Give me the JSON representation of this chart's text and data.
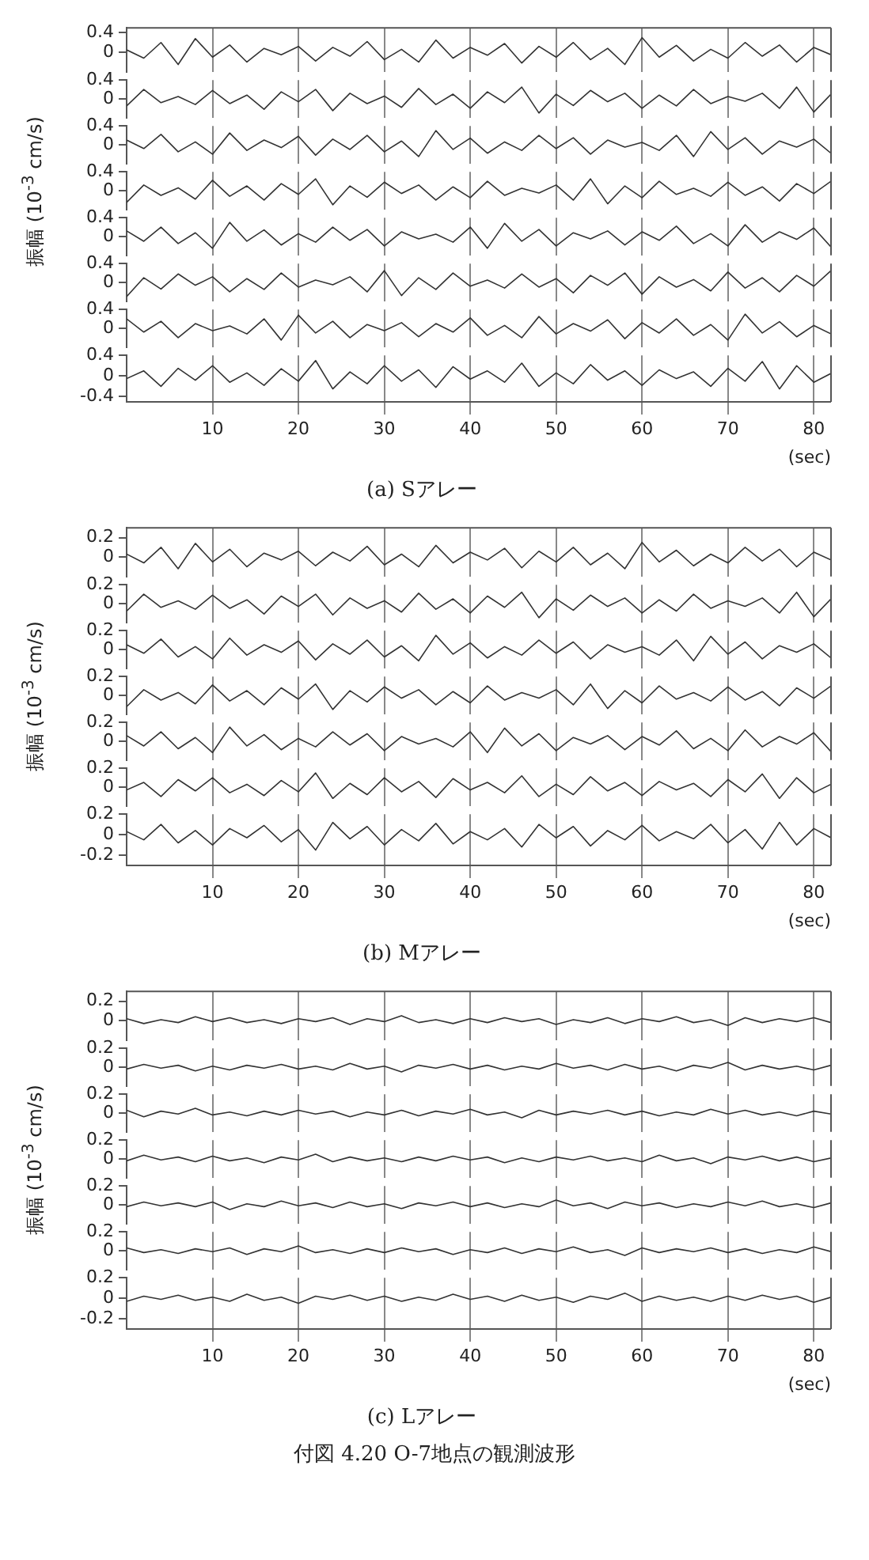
{
  "chart_data": [
    {
      "type": "line",
      "tick_labels": "y",
      "grid": "x",
      "xlim": [
        0,
        82
      ],
      "xticks": [
        10,
        20,
        30,
        40,
        50,
        60,
        70,
        80
      ],
      "ylim": [
        -0.4,
        0.5
      ],
      "yticks": [
        0.4,
        0
      ],
      "x": [
        0,
        2,
        4,
        6,
        8,
        10,
        12,
        14,
        16,
        18,
        20,
        22,
        24,
        26,
        28,
        30,
        32,
        34,
        36,
        38,
        40,
        42,
        44,
        46,
        48,
        50,
        52,
        54,
        56,
        58,
        60,
        62,
        64,
        66,
        68,
        70,
        72,
        74,
        76,
        78,
        80,
        82
      ],
      "color": "#333333",
      "values": [
        0.05,
        -0.12,
        0.2,
        -0.25,
        0.28,
        -0.1,
        0.15,
        -0.2,
        0.08,
        -0.05,
        0.12,
        -0.18,
        0.1,
        -0.08,
        0.22,
        -0.15,
        0.06,
        -0.2,
        0.25,
        -0.12,
        0.1,
        -0.06,
        0.18,
        -0.22,
        0.12,
        -0.1,
        0.2,
        -0.15,
        0.08,
        -0.25,
        0.3,
        -0.1,
        0.14,
        -0.18,
        0.06,
        -0.12,
        0.2,
        -0.08,
        0.15,
        -0.2,
        0.1,
        -0.05
      ]
    },
    {
      "type": "line",
      "tick_labels": "y",
      "grid": "x",
      "xlim": [
        0,
        82
      ],
      "xticks": [
        10,
        20,
        30,
        40,
        50,
        60,
        70,
        80
      ],
      "ylim": [
        -0.4,
        0.4
      ],
      "yticks": [
        0.4,
        0
      ],
      "x": [
        0,
        2,
        4,
        6,
        8,
        10,
        12,
        14,
        16,
        18,
        20,
        22,
        24,
        26,
        28,
        30,
        32,
        34,
        36,
        38,
        40,
        42,
        44,
        46,
        48,
        50,
        52,
        54,
        56,
        58,
        60,
        62,
        64,
        66,
        68,
        70,
        72,
        74,
        76,
        78,
        80,
        82
      ],
      "color": "#333333",
      "values": [
        -0.15,
        0.2,
        -0.08,
        0.05,
        -0.12,
        0.18,
        -0.1,
        0.08,
        -0.22,
        0.15,
        -0.06,
        0.2,
        -0.25,
        0.12,
        -0.1,
        0.06,
        -0.18,
        0.22,
        -0.12,
        0.1,
        -0.2,
        0.15,
        -0.08,
        0.25,
        -0.3,
        0.1,
        -0.14,
        0.18,
        -0.06,
        0.12,
        -0.2,
        0.08,
        -0.15,
        0.2,
        -0.1,
        0.05,
        -0.05,
        0.12,
        -0.2,
        0.25,
        -0.28,
        0.1
      ]
    },
    {
      "type": "line",
      "tick_labels": "y",
      "grid": "x",
      "xlim": [
        0,
        82
      ],
      "xticks": [
        10,
        20,
        30,
        40,
        50,
        60,
        70,
        80
      ],
      "ylim": [
        -0.4,
        0.4
      ],
      "yticks": [
        0.4,
        0
      ],
      "x": [
        0,
        2,
        4,
        6,
        8,
        10,
        12,
        14,
        16,
        18,
        20,
        22,
        24,
        26,
        28,
        30,
        32,
        34,
        36,
        38,
        40,
        42,
        44,
        46,
        48,
        50,
        52,
        54,
        56,
        58,
        60,
        62,
        64,
        66,
        68,
        70,
        72,
        74,
        76,
        78,
        80,
        82
      ],
      "color": "#333333",
      "values": [
        0.1,
        -0.08,
        0.22,
        -0.15,
        0.06,
        -0.2,
        0.25,
        -0.12,
        0.1,
        -0.06,
        0.18,
        -0.22,
        0.12,
        -0.1,
        0.2,
        -0.15,
        0.08,
        -0.25,
        0.3,
        -0.1,
        0.14,
        -0.18,
        0.06,
        -0.12,
        0.2,
        -0.08,
        0.15,
        -0.2,
        0.1,
        -0.05,
        0.05,
        -0.12,
        0.2,
        -0.25,
        0.28,
        -0.1,
        0.15,
        -0.2,
        0.08,
        -0.05,
        0.12,
        -0.18
      ]
    },
    {
      "type": "line",
      "tick_labels": "y",
      "grid": "x",
      "ylabel": "振幅 (10$^{-3}$ cm/s)",
      "xlim": [
        0,
        82
      ],
      "xticks": [
        10,
        20,
        30,
        40,
        50,
        60,
        70,
        80
      ],
      "ylim": [
        -0.4,
        0.4
      ],
      "yticks": [
        0.4,
        0
      ],
      "x": [
        0,
        2,
        4,
        6,
        8,
        10,
        12,
        14,
        16,
        18,
        20,
        22,
        24,
        26,
        28,
        30,
        32,
        34,
        36,
        38,
        40,
        42,
        44,
        46,
        48,
        50,
        52,
        54,
        56,
        58,
        60,
        62,
        64,
        66,
        68,
        70,
        72,
        74,
        76,
        78,
        80,
        82
      ],
      "color": "#333333",
      "values": [
        -0.25,
        0.12,
        -0.1,
        0.06,
        -0.18,
        0.22,
        -0.12,
        0.1,
        -0.2,
        0.15,
        -0.08,
        0.25,
        -0.3,
        0.1,
        -0.14,
        0.18,
        -0.06,
        0.12,
        -0.2,
        0.08,
        -0.15,
        0.2,
        -0.1,
        0.05,
        -0.05,
        0.12,
        -0.2,
        0.25,
        -0.28,
        0.1,
        -0.15,
        0.2,
        -0.08,
        0.05,
        -0.12,
        0.18,
        -0.1,
        0.08,
        -0.22,
        0.15,
        -0.06,
        0.2
      ]
    },
    {
      "type": "line",
      "tick_labels": "y",
      "grid": "x",
      "xlim": [
        0,
        82
      ],
      "xticks": [
        10,
        20,
        30,
        40,
        50,
        60,
        70,
        80
      ],
      "ylim": [
        -0.4,
        0.4
      ],
      "yticks": [
        0.4,
        0
      ],
      "x": [
        0,
        2,
        4,
        6,
        8,
        10,
        12,
        14,
        16,
        18,
        20,
        22,
        24,
        26,
        28,
        30,
        32,
        34,
        36,
        38,
        40,
        42,
        44,
        46,
        48,
        50,
        52,
        54,
        56,
        58,
        60,
        62,
        64,
        66,
        68,
        70,
        72,
        74,
        76,
        78,
        80,
        82
      ],
      "color": "#333333",
      "values": [
        0.12,
        -0.1,
        0.2,
        -0.15,
        0.08,
        -0.25,
        0.3,
        -0.1,
        0.14,
        -0.18,
        0.06,
        -0.12,
        0.2,
        -0.08,
        0.15,
        -0.2,
        0.1,
        -0.05,
        0.05,
        -0.12,
        0.2,
        -0.25,
        0.28,
        -0.1,
        0.15,
        -0.2,
        0.08,
        -0.05,
        0.12,
        -0.18,
        0.1,
        -0.08,
        0.22,
        -0.15,
        0.06,
        -0.2,
        0.25,
        -0.12,
        0.1,
        -0.06,
        0.18,
        -0.22
      ]
    },
    {
      "type": "line",
      "tick_labels": "y",
      "grid": "x",
      "xlim": [
        0,
        82
      ],
      "xticks": [
        10,
        20,
        30,
        40,
        50,
        60,
        70,
        80
      ],
      "ylim": [
        -0.4,
        0.4
      ],
      "yticks": [
        0.4,
        0
      ],
      "x": [
        0,
        2,
        4,
        6,
        8,
        10,
        12,
        14,
        16,
        18,
        20,
        22,
        24,
        26,
        28,
        30,
        32,
        34,
        36,
        38,
        40,
        42,
        44,
        46,
        48,
        50,
        52,
        54,
        56,
        58,
        60,
        62,
        64,
        66,
        68,
        70,
        72,
        74,
        76,
        78,
        80,
        82
      ],
      "color": "#333333",
      "values": [
        -0.3,
        0.1,
        -0.14,
        0.18,
        -0.06,
        0.12,
        -0.2,
        0.08,
        -0.15,
        0.2,
        -0.1,
        0.05,
        -0.05,
        0.12,
        -0.2,
        0.25,
        -0.28,
        0.1,
        -0.15,
        0.2,
        -0.08,
        0.05,
        -0.12,
        0.18,
        -0.1,
        0.08,
        -0.22,
        0.15,
        -0.06,
        0.2,
        -0.25,
        0.12,
        -0.1,
        0.06,
        -0.18,
        0.22,
        -0.12,
        0.1,
        -0.2,
        0.15,
        -0.08,
        0.25
      ]
    },
    {
      "type": "line",
      "tick_labels": "y",
      "grid": "x",
      "xlim": [
        0,
        82
      ],
      "xticks": [
        10,
        20,
        30,
        40,
        50,
        60,
        70,
        80
      ],
      "ylim": [
        -0.4,
        0.4
      ],
      "yticks": [
        0.4,
        0
      ],
      "x": [
        0,
        2,
        4,
        6,
        8,
        10,
        12,
        14,
        16,
        18,
        20,
        22,
        24,
        26,
        28,
        30,
        32,
        34,
        36,
        38,
        40,
        42,
        44,
        46,
        48,
        50,
        52,
        54,
        56,
        58,
        60,
        62,
        64,
        66,
        68,
        70,
        72,
        74,
        76,
        78,
        80,
        82
      ],
      "color": "#333333",
      "values": [
        0.2,
        -0.08,
        0.15,
        -0.2,
        0.1,
        -0.05,
        0.05,
        -0.12,
        0.2,
        -0.25,
        0.28,
        -0.1,
        0.15,
        -0.2,
        0.08,
        -0.05,
        0.12,
        -0.18,
        0.1,
        -0.08,
        0.22,
        -0.15,
        0.06,
        -0.2,
        0.25,
        -0.12,
        0.1,
        -0.06,
        0.18,
        -0.22,
        0.12,
        -0.1,
        0.2,
        -0.15,
        0.08,
        -0.25,
        0.3,
        -0.1,
        0.14,
        -0.18,
        0.06,
        -0.12
      ]
    },
    {
      "type": "line",
      "title": "(a) Sアレー",
      "xlabel": "(sec)",
      "grid": "x",
      "xlim": [
        0,
        82
      ],
      "xticks": [
        10,
        20,
        30,
        40,
        50,
        60,
        70,
        80
      ],
      "ylim": [
        -0.5,
        0.4
      ],
      "yticks": [
        0.4,
        0,
        -0.4
      ],
      "x": [
        0,
        2,
        4,
        6,
        8,
        10,
        12,
        14,
        16,
        18,
        20,
        22,
        24,
        26,
        28,
        30,
        32,
        34,
        36,
        38,
        40,
        42,
        44,
        46,
        48,
        50,
        52,
        54,
        56,
        58,
        60,
        62,
        64,
        66,
        68,
        70,
        72,
        74,
        76,
        78,
        80,
        82
      ],
      "color": "#333333",
      "values": [
        -0.05,
        0.1,
        -0.2,
        0.15,
        -0.08,
        0.2,
        -0.12,
        0.06,
        -0.18,
        0.14,
        -0.1,
        0.3,
        -0.25,
        0.08,
        -0.15,
        0.2,
        -0.1,
        0.12,
        -0.22,
        0.18,
        -0.06,
        0.1,
        -0.12,
        0.25,
        -0.2,
        0.06,
        -0.15,
        0.22,
        -0.08,
        0.1,
        -0.18,
        0.12,
        -0.05,
        0.08,
        -0.2,
        0.15,
        -0.1,
        0.28,
        -0.25,
        0.2,
        -0.12,
        0.05
      ]
    },
    {
      "type": "line",
      "tick_labels": "y",
      "grid": "x",
      "xlim": [
        0,
        82
      ],
      "xticks": [
        10,
        20,
        30,
        40,
        50,
        60,
        70,
        80
      ],
      "ylim": [
        -0.2,
        0.3
      ],
      "yticks": [
        0.2,
        0
      ],
      "x": [
        0,
        2,
        4,
        6,
        8,
        10,
        12,
        14,
        16,
        18,
        20,
        22,
        24,
        26,
        28,
        30,
        32,
        34,
        36,
        38,
        40,
        42,
        44,
        46,
        48,
        50,
        52,
        54,
        56,
        58,
        60,
        62,
        64,
        66,
        68,
        70,
        72,
        74,
        76,
        78,
        80,
        82
      ],
      "color": "#333333",
      "values": [
        0.03,
        -0.06,
        0.1,
        -0.12,
        0.14,
        -0.05,
        0.08,
        -0.1,
        0.04,
        -0.03,
        0.06,
        -0.09,
        0.05,
        -0.04,
        0.11,
        -0.08,
        0.03,
        -0.1,
        0.12,
        -0.06,
        0.05,
        -0.03,
        0.09,
        -0.11,
        0.06,
        -0.05,
        0.1,
        -0.08,
        0.04,
        -0.12,
        0.15,
        -0.05,
        0.07,
        -0.09,
        0.03,
        -0.06,
        0.1,
        -0.04,
        0.08,
        -0.1,
        0.05,
        -0.03
      ]
    },
    {
      "type": "line",
      "tick_labels": "y",
      "grid": "x",
      "xlim": [
        0,
        82
      ],
      "xticks": [
        10,
        20,
        30,
        40,
        50,
        60,
        70,
        80
      ],
      "ylim": [
        -0.2,
        0.2
      ],
      "yticks": [
        0.2,
        0
      ],
      "x": [
        0,
        2,
        4,
        6,
        8,
        10,
        12,
        14,
        16,
        18,
        20,
        22,
        24,
        26,
        28,
        30,
        32,
        34,
        36,
        38,
        40,
        42,
        44,
        46,
        48,
        50,
        52,
        54,
        56,
        58,
        60,
        62,
        64,
        66,
        68,
        70,
        72,
        74,
        76,
        78,
        80,
        82
      ],
      "color": "#333333",
      "values": [
        -0.08,
        0.1,
        -0.04,
        0.03,
        -0.06,
        0.09,
        -0.05,
        0.04,
        -0.11,
        0.08,
        -0.03,
        0.1,
        -0.12,
        0.06,
        -0.05,
        0.03,
        -0.09,
        0.11,
        -0.06,
        0.05,
        -0.1,
        0.08,
        -0.04,
        0.12,
        -0.15,
        0.05,
        -0.07,
        0.09,
        -0.03,
        0.06,
        -0.1,
        0.04,
        -0.08,
        0.1,
        -0.05,
        0.03,
        -0.03,
        0.06,
        -0.1,
        0.12,
        -0.14,
        0.05
      ]
    },
    {
      "type": "line",
      "tick_labels": "y",
      "grid": "x",
      "xlim": [
        0,
        82
      ],
      "xticks": [
        10,
        20,
        30,
        40,
        50,
        60,
        70,
        80
      ],
      "ylim": [
        -0.2,
        0.2
      ],
      "yticks": [
        0.2,
        0
      ],
      "x": [
        0,
        2,
        4,
        6,
        8,
        10,
        12,
        14,
        16,
        18,
        20,
        22,
        24,
        26,
        28,
        30,
        32,
        34,
        36,
        38,
        40,
        42,
        44,
        46,
        48,
        50,
        52,
        54,
        56,
        58,
        60,
        62,
        64,
        66,
        68,
        70,
        72,
        74,
        76,
        78,
        80,
        82
      ],
      "color": "#333333",
      "values": [
        0.05,
        -0.04,
        0.11,
        -0.08,
        0.03,
        -0.1,
        0.12,
        -0.06,
        0.05,
        -0.03,
        0.09,
        -0.11,
        0.06,
        -0.05,
        0.1,
        -0.08,
        0.04,
        -0.12,
        0.15,
        -0.05,
        0.07,
        -0.09,
        0.03,
        -0.06,
        0.1,
        -0.04,
        0.08,
        -0.1,
        0.05,
        -0.03,
        0.03,
        -0.06,
        0.1,
        -0.12,
        0.14,
        -0.05,
        0.08,
        -0.1,
        0.04,
        -0.03,
        0.06,
        -0.09
      ]
    },
    {
      "type": "line",
      "tick_labels": "y",
      "grid": "x",
      "ylabel": "振幅 (10$^{-3}$ cm/s)",
      "xlim": [
        0,
        82
      ],
      "xticks": [
        10,
        20,
        30,
        40,
        50,
        60,
        70,
        80
      ],
      "ylim": [
        -0.2,
        0.2
      ],
      "yticks": [
        0.2,
        0
      ],
      "x": [
        0,
        2,
        4,
        6,
        8,
        10,
        12,
        14,
        16,
        18,
        20,
        22,
        24,
        26,
        28,
        30,
        32,
        34,
        36,
        38,
        40,
        42,
        44,
        46,
        48,
        50,
        52,
        54,
        56,
        58,
        60,
        62,
        64,
        66,
        68,
        70,
        72,
        74,
        76,
        78,
        80,
        82
      ],
      "color": "#333333",
      "values": [
        -0.12,
        0.06,
        -0.05,
        0.03,
        -0.09,
        0.11,
        -0.06,
        0.05,
        -0.1,
        0.08,
        -0.04,
        0.12,
        -0.15,
        0.05,
        -0.07,
        0.09,
        -0.03,
        0.06,
        -0.1,
        0.04,
        -0.08,
        0.1,
        -0.05,
        0.03,
        -0.03,
        0.06,
        -0.1,
        0.12,
        -0.14,
        0.05,
        -0.08,
        0.1,
        -0.04,
        0.03,
        -0.06,
        0.09,
        -0.05,
        0.04,
        -0.11,
        0.08,
        -0.03,
        0.1
      ]
    },
    {
      "type": "line",
      "tick_labels": "y",
      "grid": "x",
      "xlim": [
        0,
        82
      ],
      "xticks": [
        10,
        20,
        30,
        40,
        50,
        60,
        70,
        80
      ],
      "ylim": [
        -0.2,
        0.2
      ],
      "yticks": [
        0.2,
        0
      ],
      "x": [
        0,
        2,
        4,
        6,
        8,
        10,
        12,
        14,
        16,
        18,
        20,
        22,
        24,
        26,
        28,
        30,
        32,
        34,
        36,
        38,
        40,
        42,
        44,
        46,
        48,
        50,
        52,
        54,
        56,
        58,
        60,
        62,
        64,
        66,
        68,
        70,
        72,
        74,
        76,
        78,
        80,
        82
      ],
      "color": "#333333",
      "values": [
        0.06,
        -0.05,
        0.1,
        -0.08,
        0.04,
        -0.12,
        0.15,
        -0.05,
        0.07,
        -0.09,
        0.03,
        -0.06,
        0.1,
        -0.04,
        0.08,
        -0.1,
        0.05,
        -0.03,
        0.03,
        -0.06,
        0.1,
        -0.12,
        0.14,
        -0.05,
        0.08,
        -0.1,
        0.04,
        -0.03,
        0.06,
        -0.09,
        0.05,
        -0.04,
        0.11,
        -0.08,
        0.03,
        -0.1,
        0.12,
        -0.06,
        0.05,
        -0.03,
        0.09,
        -0.11
      ]
    },
    {
      "type": "line",
      "tick_labels": "y",
      "grid": "x",
      "xlim": [
        0,
        82
      ],
      "xticks": [
        10,
        20,
        30,
        40,
        50,
        60,
        70,
        80
      ],
      "ylim": [
        -0.2,
        0.2
      ],
      "yticks": [
        0.2,
        0
      ],
      "x": [
        0,
        2,
        4,
        6,
        8,
        10,
        12,
        14,
        16,
        18,
        20,
        22,
        24,
        26,
        28,
        30,
        32,
        34,
        36,
        38,
        40,
        42,
        44,
        46,
        48,
        50,
        52,
        54,
        56,
        58,
        60,
        62,
        64,
        66,
        68,
        70,
        72,
        74,
        76,
        78,
        80,
        82
      ],
      "color": "#333333",
      "values": [
        -0.03,
        0.05,
        -0.1,
        0.08,
        -0.04,
        0.1,
        -0.06,
        0.03,
        -0.09,
        0.07,
        -0.05,
        0.15,
        -0.12,
        0.04,
        -0.08,
        0.1,
        -0.05,
        0.06,
        -0.11,
        0.09,
        -0.03,
        0.05,
        -0.06,
        0.12,
        -0.1,
        0.03,
        -0.08,
        0.11,
        -0.04,
        0.05,
        -0.09,
        0.06,
        -0.03,
        0.04,
        -0.1,
        0.08,
        -0.05,
        0.14,
        -0.12,
        0.1,
        -0.06,
        0.03
      ]
    },
    {
      "type": "line",
      "title": "(b) Mアレー",
      "xlabel": "(sec)",
      "grid": "x",
      "xlim": [
        0,
        82
      ],
      "xticks": [
        10,
        20,
        30,
        40,
        50,
        60,
        70,
        80
      ],
      "ylim": [
        -0.3,
        0.2
      ],
      "yticks": [
        0.2,
        0,
        -0.2
      ],
      "x": [
        0,
        2,
        4,
        6,
        8,
        10,
        12,
        14,
        16,
        18,
        20,
        22,
        24,
        26,
        28,
        30,
        32,
        34,
        36,
        38,
        40,
        42,
        44,
        46,
        48,
        50,
        52,
        54,
        56,
        58,
        60,
        62,
        64,
        66,
        68,
        70,
        72,
        74,
        76,
        78,
        80,
        82
      ],
      "color": "#333333",
      "values": [
        0.03,
        -0.05,
        0.1,
        -0.08,
        0.04,
        -0.1,
        0.06,
        -0.03,
        0.09,
        -0.07,
        0.05,
        -0.15,
        0.12,
        -0.04,
        0.08,
        -0.1,
        0.05,
        -0.06,
        0.11,
        -0.09,
        0.03,
        -0.05,
        0.06,
        -0.12,
        0.1,
        -0.03,
        0.08,
        -0.11,
        0.04,
        -0.05,
        0.09,
        -0.06,
        0.03,
        -0.04,
        0.1,
        -0.08,
        0.05,
        -0.14,
        0.12,
        -0.1,
        0.06,
        -0.03
      ]
    },
    {
      "type": "line",
      "tick_labels": "y",
      "grid": "x",
      "xlim": [
        0,
        82
      ],
      "xticks": [
        10,
        20,
        30,
        40,
        50,
        60,
        70,
        80
      ],
      "ylim": [
        -0.2,
        0.3
      ],
      "yticks": [
        0.2,
        0
      ],
      "x": [
        0,
        2,
        4,
        6,
        8,
        10,
        12,
        14,
        16,
        18,
        20,
        22,
        24,
        26,
        28,
        30,
        32,
        34,
        36,
        38,
        40,
        42,
        44,
        46,
        48,
        50,
        52,
        54,
        56,
        58,
        60,
        62,
        64,
        66,
        68,
        70,
        72,
        74,
        76,
        78,
        80,
        82
      ],
      "color": "#333333",
      "values": [
        0.02,
        -0.03,
        0.01,
        -0.02,
        0.04,
        -0.01,
        0.03,
        -0.02,
        0.01,
        -0.03,
        0.02,
        -0.01,
        0.03,
        -0.04,
        0.02,
        -0.01,
        0.05,
        -0.02,
        0.01,
        -0.03,
        0.02,
        -0.02,
        0.03,
        -0.01,
        0.02,
        -0.04,
        0.01,
        -0.02,
        0.03,
        -0.03,
        0.02,
        -0.01,
        0.04,
        -0.02,
        0.01,
        -0.05,
        0.03,
        -0.02,
        0.02,
        -0.01,
        0.03,
        -0.02
      ]
    },
    {
      "type": "line",
      "tick_labels": "y",
      "grid": "x",
      "xlim": [
        0,
        82
      ],
      "xticks": [
        10,
        20,
        30,
        40,
        50,
        60,
        70,
        80
      ],
      "ylim": [
        -0.2,
        0.2
      ],
      "yticks": [
        0.2,
        0
      ],
      "x": [
        0,
        2,
        4,
        6,
        8,
        10,
        12,
        14,
        16,
        18,
        20,
        22,
        24,
        26,
        28,
        30,
        32,
        34,
        36,
        38,
        40,
        42,
        44,
        46,
        48,
        50,
        52,
        54,
        56,
        58,
        60,
        62,
        64,
        66,
        68,
        70,
        72,
        74,
        76,
        78,
        80,
        82
      ],
      "color": "#333333",
      "values": [
        -0.02,
        0.03,
        -0.01,
        0.02,
        -0.04,
        0.01,
        -0.03,
        0.02,
        -0.01,
        0.03,
        -0.02,
        0.01,
        -0.03,
        0.04,
        -0.02,
        0.01,
        -0.05,
        0.02,
        -0.01,
        0.03,
        -0.02,
        0.02,
        -0.03,
        0.01,
        -0.02,
        0.04,
        -0.01,
        0.02,
        -0.03,
        0.03,
        -0.02,
        0.01,
        -0.04,
        0.02,
        -0.01,
        0.05,
        -0.03,
        0.02,
        -0.02,
        0.01,
        -0.03,
        0.02
      ]
    },
    {
      "type": "line",
      "tick_labels": "y",
      "grid": "x",
      "xlim": [
        0,
        82
      ],
      "xticks": [
        10,
        20,
        30,
        40,
        50,
        60,
        70,
        80
      ],
      "ylim": [
        -0.2,
        0.2
      ],
      "yticks": [
        0.2,
        0
      ],
      "x": [
        0,
        2,
        4,
        6,
        8,
        10,
        12,
        14,
        16,
        18,
        20,
        22,
        24,
        26,
        28,
        30,
        32,
        34,
        36,
        38,
        40,
        42,
        44,
        46,
        48,
        50,
        52,
        54,
        56,
        58,
        60,
        62,
        64,
        66,
        68,
        70,
        72,
        74,
        76,
        78,
        80,
        82
      ],
      "color": "#333333",
      "values": [
        0.03,
        -0.04,
        0.02,
        -0.01,
        0.05,
        -0.02,
        0.01,
        -0.03,
        0.02,
        -0.02,
        0.03,
        -0.01,
        0.02,
        -0.04,
        0.01,
        -0.02,
        0.03,
        -0.03,
        0.02,
        -0.01,
        0.04,
        -0.02,
        0.01,
        -0.05,
        0.03,
        -0.02,
        0.02,
        -0.01,
        0.03,
        -0.02,
        0.02,
        -0.03,
        0.01,
        -0.02,
        0.04,
        -0.01,
        0.03,
        -0.02,
        0.01,
        -0.03,
        0.02,
        -0.01
      ]
    },
    {
      "type": "line",
      "tick_labels": "y",
      "grid": "x",
      "ylabel": "振幅 (10$^{-3}$ cm/s)",
      "xlim": [
        0,
        82
      ],
      "xticks": [
        10,
        20,
        30,
        40,
        50,
        60,
        70,
        80
      ],
      "ylim": [
        -0.2,
        0.2
      ],
      "yticks": [
        0.2,
        0
      ],
      "x": [
        0,
        2,
        4,
        6,
        8,
        10,
        12,
        14,
        16,
        18,
        20,
        22,
        24,
        26,
        28,
        30,
        32,
        34,
        36,
        38,
        40,
        42,
        44,
        46,
        48,
        50,
        52,
        54,
        56,
        58,
        60,
        62,
        64,
        66,
        68,
        70,
        72,
        74,
        76,
        78,
        80,
        82
      ],
      "color": "#333333",
      "values": [
        -0.02,
        0.04,
        -0.01,
        0.02,
        -0.03,
        0.03,
        -0.02,
        0.01,
        -0.04,
        0.02,
        -0.01,
        0.05,
        -0.03,
        0.02,
        -0.02,
        0.01,
        -0.03,
        0.02,
        -0.02,
        0.03,
        -0.01,
        0.02,
        -0.04,
        0.01,
        -0.03,
        0.02,
        -0.01,
        0.03,
        -0.02,
        0.01,
        -0.03,
        0.04,
        -0.02,
        0.01,
        -0.05,
        0.02,
        -0.01,
        0.03,
        -0.02,
        0.02,
        -0.03,
        0.01
      ]
    },
    {
      "type": "line",
      "tick_labels": "y",
      "grid": "x",
      "xlim": [
        0,
        82
      ],
      "xticks": [
        10,
        20,
        30,
        40,
        50,
        60,
        70,
        80
      ],
      "ylim": [
        -0.2,
        0.2
      ],
      "yticks": [
        0.2,
        0
      ],
      "x": [
        0,
        2,
        4,
        6,
        8,
        10,
        12,
        14,
        16,
        18,
        20,
        22,
        24,
        26,
        28,
        30,
        32,
        34,
        36,
        38,
        40,
        42,
        44,
        46,
        48,
        50,
        52,
        54,
        56,
        58,
        60,
        62,
        64,
        66,
        68,
        70,
        72,
        74,
        76,
        78,
        80,
        82
      ],
      "color": "#333333",
      "values": [
        -0.02,
        0.03,
        -0.01,
        0.02,
        -0.02,
        0.03,
        -0.05,
        0.01,
        -0.02,
        0.04,
        -0.01,
        0.02,
        -0.03,
        0.03,
        -0.02,
        0.01,
        -0.04,
        0.02,
        -0.01,
        0.03,
        -0.02,
        0.02,
        -0.03,
        0.01,
        -0.02,
        0.05,
        -0.01,
        0.02,
        -0.04,
        0.03,
        -0.01,
        0.02,
        -0.03,
        0.01,
        -0.02,
        0.03,
        -0.01,
        0.04,
        -0.02,
        0.01,
        -0.03,
        0.02
      ]
    },
    {
      "type": "line",
      "tick_labels": "y",
      "grid": "x",
      "xlim": [
        0,
        82
      ],
      "xticks": [
        10,
        20,
        30,
        40,
        50,
        60,
        70,
        80
      ],
      "ylim": [
        -0.2,
        0.2
      ],
      "yticks": [
        0.2,
        0
      ],
      "x": [
        0,
        2,
        4,
        6,
        8,
        10,
        12,
        14,
        16,
        18,
        20,
        22,
        24,
        26,
        28,
        30,
        32,
        34,
        36,
        38,
        40,
        42,
        44,
        46,
        48,
        50,
        52,
        54,
        56,
        58,
        60,
        62,
        64,
        66,
        68,
        70,
        72,
        74,
        76,
        78,
        80,
        82
      ],
      "color": "#333333",
      "values": [
        0.03,
        -0.02,
        0.01,
        -0.03,
        0.02,
        -0.01,
        0.03,
        -0.04,
        0.02,
        -0.01,
        0.05,
        -0.02,
        0.01,
        -0.03,
        0.02,
        -0.02,
        0.03,
        -0.01,
        0.02,
        -0.04,
        0.01,
        -0.02,
        0.03,
        -0.03,
        0.02,
        -0.01,
        0.04,
        -0.02,
        0.01,
        -0.05,
        0.03,
        -0.02,
        0.02,
        -0.01,
        0.03,
        -0.02,
        0.02,
        -0.03,
        0.01,
        -0.02,
        0.04,
        -0.01
      ]
    },
    {
      "type": "line",
      "title": "(c) Lアレー",
      "xlabel": "(sec)",
      "annotations": [
        "付図 4.20 O-7地点の観測波形"
      ],
      "grid": "x",
      "xlim": [
        0,
        82
      ],
      "xticks": [
        10,
        20,
        30,
        40,
        50,
        60,
        70,
        80
      ],
      "ylim": [
        -0.3,
        0.2
      ],
      "yticks": [
        0.2,
        0,
        -0.2
      ],
      "x": [
        0,
        2,
        4,
        6,
        8,
        10,
        12,
        14,
        16,
        18,
        20,
        22,
        24,
        26,
        28,
        30,
        32,
        34,
        36,
        38,
        40,
        42,
        44,
        46,
        48,
        50,
        52,
        54,
        56,
        58,
        60,
        62,
        64,
        66,
        68,
        70,
        72,
        74,
        76,
        78,
        80,
        82
      ],
      "color": "#333333",
      "values": [
        -0.03,
        0.02,
        -0.01,
        0.03,
        -0.02,
        0.01,
        -0.03,
        0.04,
        -0.02,
        0.01,
        -0.05,
        0.02,
        -0.01,
        0.03,
        -0.02,
        0.02,
        -0.03,
        0.01,
        -0.02,
        0.04,
        -0.01,
        0.02,
        -0.03,
        0.03,
        -0.02,
        0.01,
        -0.04,
        0.02,
        -0.01,
        0.05,
        -0.03,
        0.02,
        -0.02,
        0.01,
        -0.03,
        0.02,
        -0.02,
        0.03,
        -0.01,
        0.02,
        -0.04,
        0.01
      ]
    }
  ]
}
